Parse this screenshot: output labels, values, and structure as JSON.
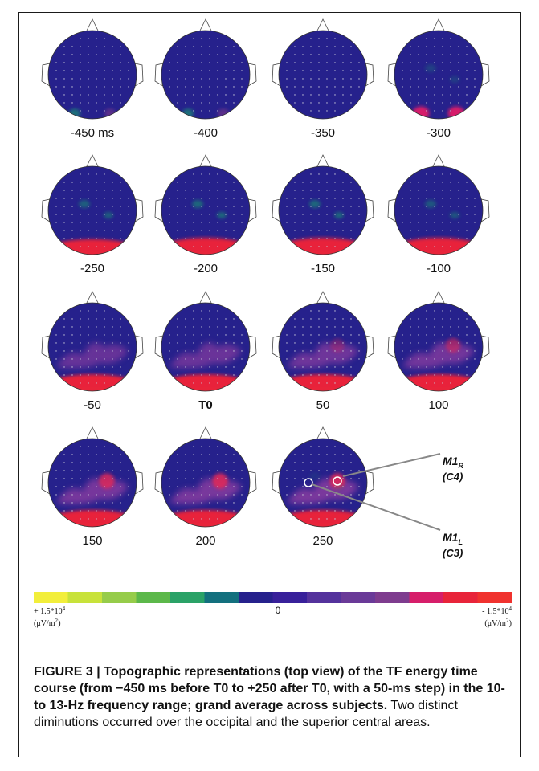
{
  "panels": [
    {
      "label": "-450 ms",
      "bold": false
    },
    {
      "label": "-400",
      "bold": false
    },
    {
      "label": "-350",
      "bold": false
    },
    {
      "label": "-300",
      "bold": false
    },
    {
      "label": "-250",
      "bold": false
    },
    {
      "label": "-200",
      "bold": false
    },
    {
      "label": "-150",
      "bold": false
    },
    {
      "label": "-100",
      "bold": false
    },
    {
      "label": "-50",
      "bold": false
    },
    {
      "label": "T0",
      "bold": true
    },
    {
      "label": "50",
      "bold": false
    },
    {
      "label": "100",
      "bold": false
    },
    {
      "label": "150",
      "bold": false
    },
    {
      "label": "200",
      "bold": false
    },
    {
      "label": "250",
      "bold": false
    }
  ],
  "electrodes": {
    "right": {
      "name": "M1",
      "sub": "R",
      "channel": "(C4)"
    },
    "left": {
      "name": "M1",
      "sub": "L",
      "channel": "(C3)"
    }
  },
  "colorbar": {
    "colors": [
      "#f2ee3b",
      "#c8e23a",
      "#96cc4a",
      "#5cb84a",
      "#2aa267",
      "#13707e",
      "#26218c",
      "#38209a",
      "#54329c",
      "#6a3a98",
      "#7e3c8e",
      "#d61e6a",
      "#e8243a",
      "#f0322e"
    ],
    "left_value": "+ 1.5*10",
    "left_exp": "4",
    "left_unit": "(μV/m",
    "left_unit_exp": "2",
    "left_unit_close": ")",
    "center_value": "0",
    "right_value": "- 1.5*10",
    "right_exp": "4",
    "right_unit": "(μV/m",
    "right_unit_exp": "2",
    "right_unit_close": ")"
  },
  "colors": {
    "background": "#26218c",
    "occipital": "#e8243a",
    "central": "#8b3ca0",
    "teal": "#1f6e7a"
  },
  "caption": {
    "head": "FIGURE 3 | Topographic representations (top view) of the TF energy time course (from −450 ms before T0 to +250 after T0, with a 50-ms step) in the 10- to 13-Hz frequency range; grand average across subjects.",
    "body": " Two distinct diminutions occurred over the occipital and the superior central areas."
  }
}
